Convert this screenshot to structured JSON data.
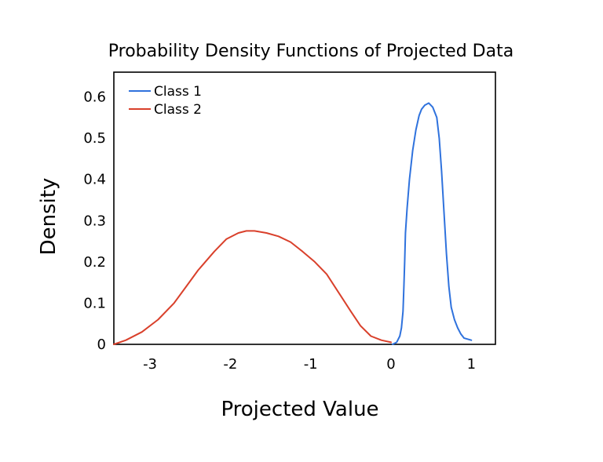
{
  "chart_data": {
    "type": "line",
    "title": "Probability Density Functions of Projected Data",
    "xlabel": "Projected Value",
    "ylabel": "Density",
    "xlim": [
      -3.45,
      1.3
    ],
    "ylim": [
      0,
      0.66
    ],
    "xticks": [
      -3,
      -2,
      -1,
      0,
      1
    ],
    "xtick_labels": [
      "-3",
      "-2",
      "-1",
      "0",
      "1"
    ],
    "yticks": [
      0,
      0.1,
      0.2,
      0.3,
      0.4,
      0.5,
      0.6
    ],
    "ytick_labels": [
      "0",
      "0.1",
      "0.2",
      "0.3",
      "0.4",
      "0.5",
      "0.6"
    ],
    "grid": false,
    "legend_position": "top-left",
    "series": [
      {
        "name": "Class 1",
        "color": "#2f72dd",
        "x": [
          0.02,
          0.07,
          0.11,
          0.13,
          0.15,
          0.16,
          0.17,
          0.18,
          0.2,
          0.23,
          0.27,
          0.31,
          0.35,
          0.38,
          0.42,
          0.47,
          0.52,
          0.57,
          0.6,
          0.63,
          0.66,
          0.69,
          0.72,
          0.75,
          0.79,
          0.83,
          0.87,
          0.91,
          1.0
        ],
        "y": [
          0.0,
          0.005,
          0.02,
          0.04,
          0.08,
          0.14,
          0.2,
          0.27,
          0.33,
          0.4,
          0.47,
          0.52,
          0.555,
          0.57,
          0.58,
          0.585,
          0.575,
          0.55,
          0.5,
          0.42,
          0.32,
          0.22,
          0.14,
          0.09,
          0.06,
          0.04,
          0.025,
          0.015,
          0.01
        ]
      },
      {
        "name": "Class 2",
        "color": "#d9402b",
        "x": [
          -3.45,
          -3.3,
          -3.1,
          -2.9,
          -2.7,
          -2.55,
          -2.4,
          -2.2,
          -2.05,
          -1.9,
          -1.8,
          -1.7,
          -1.55,
          -1.4,
          -1.25,
          -1.1,
          -0.95,
          -0.8,
          -0.65,
          -0.5,
          -0.38,
          -0.25,
          -0.12,
          0.0
        ],
        "y": [
          0.0,
          0.01,
          0.03,
          0.06,
          0.1,
          0.14,
          0.18,
          0.225,
          0.255,
          0.27,
          0.275,
          0.275,
          0.27,
          0.262,
          0.248,
          0.225,
          0.2,
          0.17,
          0.125,
          0.08,
          0.045,
          0.02,
          0.01,
          0.005
        ]
      }
    ]
  }
}
